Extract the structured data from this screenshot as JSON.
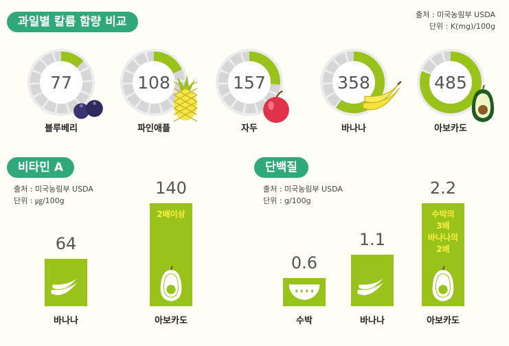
{
  "calorie_section": {
    "title": "과일별 칼륨 함량 비교",
    "source": "출처 : 미국농림부 USDA",
    "unit": "단위 : K(mg)/100g"
  },
  "vitamin_section": {
    "title": "비타민 A",
    "source": "출처 : 미국농림부 USDA",
    "unit": "단위 : ㎍/100g"
  },
  "protein_section": {
    "title": "단백질",
    "source": "출처 : 미국농림부 USDA",
    "unit": "단위 : g/100g"
  },
  "colors": {
    "accent_green": "#2fa87a",
    "bar_green": "#99c21a",
    "ring_gray": "#d6d6d6",
    "ring_inner": "#f2f2f2",
    "highlight_yellow": "#ffee44"
  },
  "chart_data": [
    {
      "type": "pie",
      "title": "과일별 칼륨 함량 비교",
      "categories": [
        "블루베리",
        "파인애플",
        "자두",
        "바나나",
        "아보카도"
      ],
      "values": [
        77,
        108,
        157,
        358,
        485
      ],
      "icons": [
        "blueberry-icon",
        "pineapple-icon",
        "plum-icon",
        "banana-icon",
        "avocado-icon"
      ]
    },
    {
      "type": "bar",
      "title": "비타민 A",
      "categories": [
        "바나나",
        "아보카도"
      ],
      "values": [
        64,
        140
      ],
      "annotations": [
        "",
        "2배이상"
      ],
      "icons": [
        "banana-icon",
        "avocado-icon"
      ]
    },
    {
      "type": "bar",
      "title": "단백질",
      "categories": [
        "수박",
        "바나나",
        "아보카도"
      ],
      "values": [
        0.6,
        1.1,
        2.2
      ],
      "annotations": [
        "",
        "",
        "수박의\n3배\n바나나의\n2배"
      ],
      "icons": [
        "watermelon-icon",
        "banana-icon",
        "avocado-icon"
      ]
    }
  ]
}
